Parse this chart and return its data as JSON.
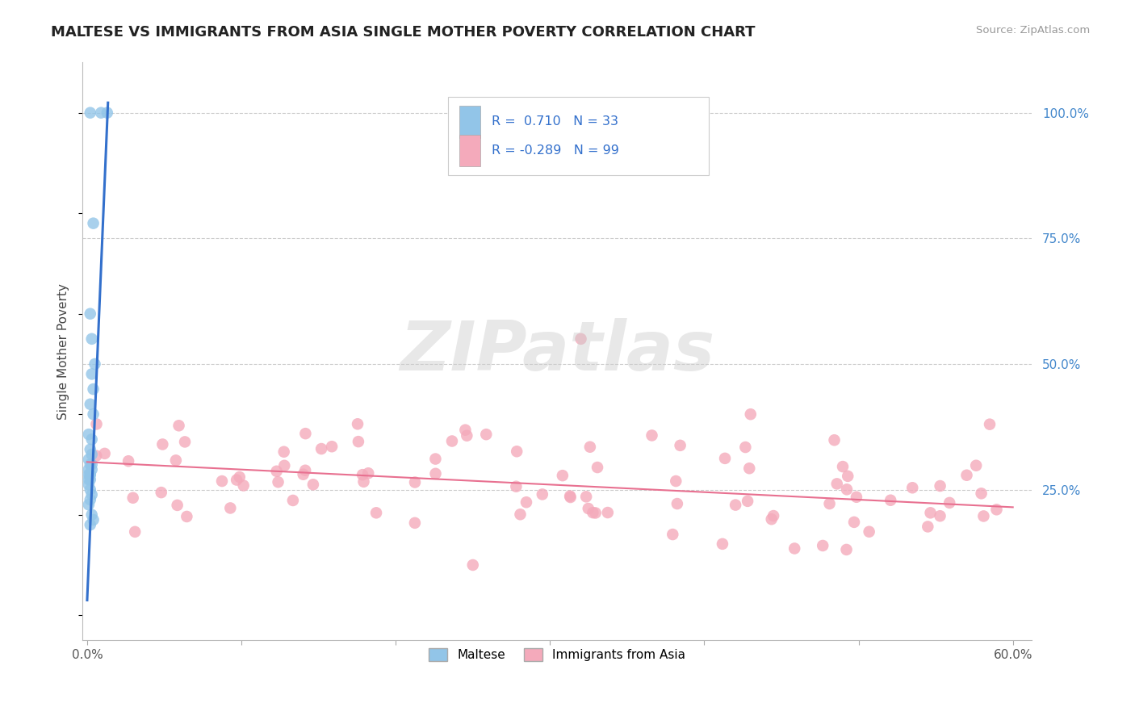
{
  "title": "MALTESE VS IMMIGRANTS FROM ASIA SINGLE MOTHER POVERTY CORRELATION CHART",
  "source": "Source: ZipAtlas.com",
  "ylabel": "Single Mother Poverty",
  "xlim": [
    -0.003,
    0.612
  ],
  "ylim": [
    -0.05,
    1.1
  ],
  "xticks": [
    0.0,
    0.1,
    0.2,
    0.3,
    0.4,
    0.5,
    0.6
  ],
  "xticklabels": [
    "0.0%",
    "",
    "",
    "",
    "",
    "",
    "60.0%"
  ],
  "yticks_right": [
    0.25,
    0.5,
    0.75,
    1.0
  ],
  "yticklabels_right": [
    "25.0%",
    "50.0%",
    "75.0%",
    "100.0%"
  ],
  "blue_R": 0.71,
  "blue_N": 33,
  "pink_R": -0.289,
  "pink_N": 99,
  "blue_color": "#92C5E8",
  "pink_color": "#F4AABB",
  "blue_line_color": "#3370CC",
  "pink_line_color": "#E87090",
  "legend_label_blue": "Maltese",
  "legend_label_pink": "Immigrants from Asia",
  "watermark_text": "ZIPatlas",
  "blue_trend_x": [
    0.0,
    0.0135
  ],
  "blue_trend_y": [
    0.03,
    1.02
  ],
  "pink_trend_x": [
    0.0,
    0.6
  ],
  "pink_trend_y": [
    0.305,
    0.215
  ]
}
